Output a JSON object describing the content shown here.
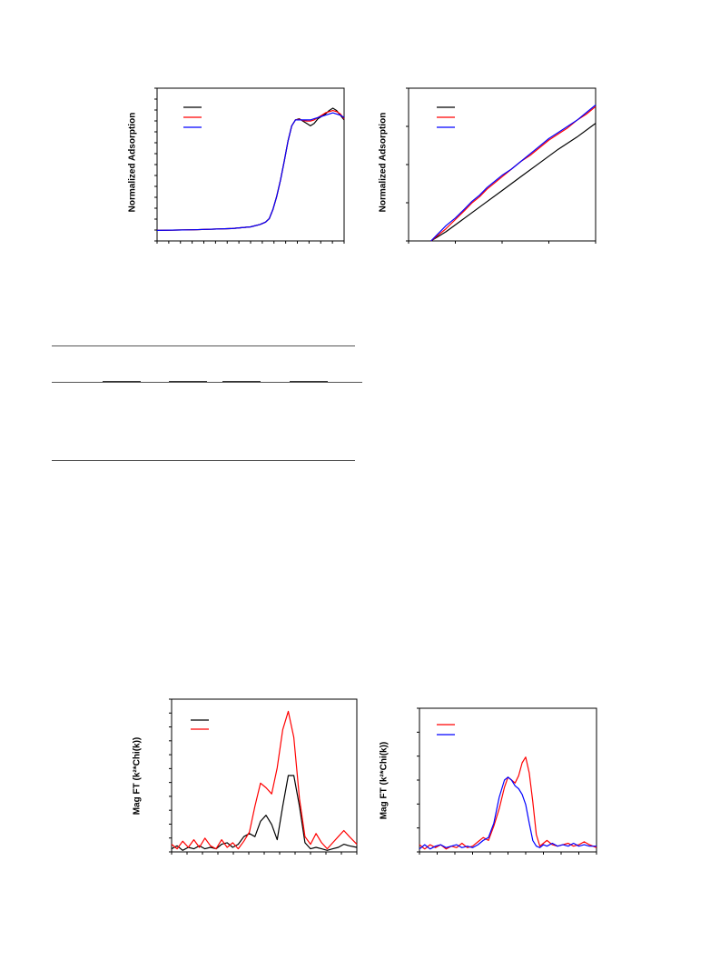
{
  "chart_data": [
    {
      "type": "line",
      "ylabel": "Normalized Adsorption",
      "xlabel": "",
      "xlim": [
        0,
        100
      ],
      "ylim": [
        0,
        1.3
      ],
      "grid": false,
      "legend": "top-left",
      "series": [
        {
          "color": "#000000",
          "x": [
            0,
            20,
            40,
            50,
            55,
            58,
            60,
            62,
            64,
            66,
            68,
            70,
            72,
            74,
            76,
            78,
            80,
            82,
            84,
            86,
            88,
            90,
            92,
            94,
            96,
            98,
            100
          ],
          "y": [
            0.09,
            0.095,
            0.105,
            0.12,
            0.14,
            0.16,
            0.19,
            0.27,
            0.38,
            0.52,
            0.68,
            0.85,
            0.98,
            1.03,
            1.04,
            1.02,
            1.0,
            0.98,
            1.0,
            1.04,
            1.06,
            1.08,
            1.11,
            1.13,
            1.11,
            1.07,
            1.03
          ]
        },
        {
          "color": "#ff0000",
          "x": [
            0,
            20,
            40,
            50,
            55,
            58,
            60,
            62,
            64,
            66,
            68,
            70,
            72,
            74,
            76,
            78,
            80,
            82,
            84,
            86,
            88,
            90,
            92,
            94,
            96,
            98,
            100
          ],
          "y": [
            0.09,
            0.095,
            0.105,
            0.12,
            0.14,
            0.16,
            0.19,
            0.27,
            0.38,
            0.52,
            0.68,
            0.85,
            0.98,
            1.03,
            1.035,
            1.025,
            1.02,
            1.02,
            1.03,
            1.05,
            1.07,
            1.09,
            1.1,
            1.11,
            1.1,
            1.08,
            1.04
          ]
        },
        {
          "color": "#0000ff",
          "x": [
            0,
            20,
            40,
            50,
            55,
            58,
            60,
            62,
            64,
            66,
            68,
            70,
            72,
            74,
            76,
            78,
            80,
            82,
            84,
            86,
            88,
            90,
            92,
            94,
            96,
            98,
            100
          ],
          "y": [
            0.09,
            0.095,
            0.105,
            0.12,
            0.14,
            0.16,
            0.19,
            0.27,
            0.38,
            0.52,
            0.68,
            0.85,
            0.98,
            1.03,
            1.03,
            1.03,
            1.03,
            1.03,
            1.04,
            1.05,
            1.06,
            1.07,
            1.08,
            1.09,
            1.08,
            1.07,
            1.05
          ]
        }
      ]
    },
    {
      "type": "line",
      "ylabel": "Normalized Adsorption",
      "xlabel": "",
      "xlim": [
        0,
        100
      ],
      "ylim": [
        0,
        1
      ],
      "grid": false,
      "legend": "top-left",
      "series": [
        {
          "color": "#000000",
          "x": [
            12,
            20,
            30,
            40,
            50,
            60,
            70,
            80,
            90,
            100
          ],
          "y": [
            0.0,
            0.06,
            0.15,
            0.24,
            0.33,
            0.42,
            0.51,
            0.6,
            0.68,
            0.77
          ]
        },
        {
          "color": "#ff0000",
          "x": [
            12,
            16,
            20,
            25,
            30,
            34,
            38,
            42,
            46,
            50,
            55,
            60,
            65,
            70,
            75,
            80,
            85,
            90,
            95,
            100
          ],
          "y": [
            0.0,
            0.04,
            0.08,
            0.14,
            0.2,
            0.25,
            0.29,
            0.34,
            0.38,
            0.42,
            0.47,
            0.52,
            0.56,
            0.61,
            0.66,
            0.7,
            0.74,
            0.79,
            0.83,
            0.88
          ]
        },
        {
          "color": "#0000ff",
          "x": [
            12,
            16,
            20,
            25,
            30,
            34,
            38,
            42,
            46,
            50,
            55,
            60,
            65,
            70,
            75,
            80,
            85,
            90,
            95,
            100
          ],
          "y": [
            0.0,
            0.05,
            0.1,
            0.15,
            0.21,
            0.26,
            0.3,
            0.35,
            0.39,
            0.43,
            0.47,
            0.52,
            0.57,
            0.62,
            0.67,
            0.71,
            0.75,
            0.79,
            0.84,
            0.89
          ]
        }
      ]
    },
    {
      "type": "line",
      "ylabel": "Mag FT (k²*Chi(k))",
      "xlabel": "",
      "xlim": [
        0,
        100
      ],
      "ylim": [
        0,
        1
      ],
      "grid": false,
      "legend": "top-left",
      "series": [
        {
          "color": "#000000",
          "x": [
            0,
            3,
            6,
            9,
            12,
            15,
            18,
            21,
            24,
            27,
            30,
            33,
            36,
            39,
            42,
            45,
            48,
            51,
            54,
            57,
            60,
            63,
            66,
            69,
            72,
            75,
            78,
            81,
            84,
            87,
            90,
            93,
            96,
            100
          ],
          "y": [
            0.02,
            0.04,
            0.01,
            0.03,
            0.02,
            0.04,
            0.02,
            0.03,
            0.02,
            0.05,
            0.06,
            0.03,
            0.05,
            0.1,
            0.12,
            0.1,
            0.2,
            0.24,
            0.18,
            0.08,
            0.3,
            0.5,
            0.5,
            0.3,
            0.06,
            0.02,
            0.03,
            0.02,
            0.01,
            0.02,
            0.03,
            0.05,
            0.04,
            0.03
          ]
        },
        {
          "color": "#ff0000",
          "x": [
            0,
            3,
            6,
            9,
            12,
            15,
            18,
            21,
            24,
            27,
            30,
            33,
            36,
            39,
            42,
            45,
            48,
            51,
            54,
            57,
            60,
            63,
            66,
            69,
            72,
            75,
            78,
            81,
            84,
            87,
            90,
            93,
            96,
            100
          ],
          "y": [
            0.05,
            0.02,
            0.07,
            0.03,
            0.08,
            0.03,
            0.09,
            0.04,
            0.02,
            0.08,
            0.03,
            0.06,
            0.02,
            0.07,
            0.13,
            0.3,
            0.45,
            0.42,
            0.38,
            0.55,
            0.8,
            0.92,
            0.75,
            0.35,
            0.1,
            0.05,
            0.12,
            0.06,
            0.02,
            0.06,
            0.1,
            0.14,
            0.1,
            0.05
          ]
        }
      ]
    },
    {
      "type": "line",
      "ylabel": "Mag FT (k²*Chi(k))",
      "xlabel": "",
      "xlim": [
        0,
        100
      ],
      "ylim": [
        0,
        1
      ],
      "grid": false,
      "legend": "top-left",
      "series": [
        {
          "color": "#ff0000",
          "x": [
            0,
            3,
            6,
            9,
            12,
            15,
            18,
            21,
            24,
            27,
            30,
            33,
            36,
            39,
            42,
            45,
            48,
            50,
            52,
            54,
            56,
            58,
            60,
            62,
            64,
            66,
            68,
            70,
            72,
            75,
            78,
            81,
            84,
            87,
            90,
            93,
            96,
            100
          ],
          "y": [
            0.05,
            0.02,
            0.05,
            0.03,
            0.05,
            0.02,
            0.04,
            0.03,
            0.06,
            0.03,
            0.04,
            0.07,
            0.1,
            0.08,
            0.18,
            0.3,
            0.45,
            0.52,
            0.5,
            0.48,
            0.53,
            0.62,
            0.66,
            0.55,
            0.35,
            0.12,
            0.04,
            0.06,
            0.08,
            0.05,
            0.04,
            0.05,
            0.06,
            0.04,
            0.05,
            0.07,
            0.05,
            0.03
          ]
        },
        {
          "color": "#0000ff",
          "x": [
            0,
            3,
            6,
            9,
            12,
            15,
            18,
            21,
            24,
            27,
            30,
            33,
            36,
            39,
            42,
            45,
            48,
            50,
            52,
            54,
            56,
            58,
            60,
            62,
            64,
            66,
            68,
            70,
            72,
            75,
            78,
            81,
            84,
            87,
            90,
            93,
            96,
            100
          ],
          "y": [
            0.02,
            0.05,
            0.02,
            0.04,
            0.05,
            0.03,
            0.04,
            0.05,
            0.03,
            0.04,
            0.03,
            0.05,
            0.08,
            0.1,
            0.2,
            0.38,
            0.5,
            0.52,
            0.5,
            0.46,
            0.44,
            0.4,
            0.33,
            0.2,
            0.08,
            0.04,
            0.03,
            0.05,
            0.04,
            0.06,
            0.04,
            0.05,
            0.04,
            0.06,
            0.04,
            0.05,
            0.04,
            0.04
          ]
        }
      ]
    }
  ]
}
